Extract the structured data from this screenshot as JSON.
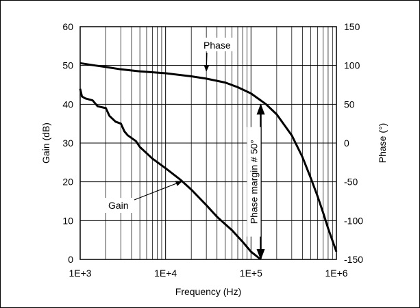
{
  "chart_data": {
    "type": "line",
    "title": "",
    "xlabel": "Frequency (Hz)",
    "ylabel_left": "Gain (dB)",
    "ylabel_right": "Phase (°)",
    "x_scale": "log",
    "xlim": [
      1000,
      1000000
    ],
    "ylim_left": [
      0,
      60
    ],
    "ylim_right": [
      -150,
      150
    ],
    "grid": true,
    "x_ticks": [
      {
        "value": 1000,
        "label": "1E+3"
      },
      {
        "value": 10000,
        "label": "1E+4"
      },
      {
        "value": 100000,
        "label": "1E+5"
      },
      {
        "value": 1000000,
        "label": "1E+6"
      }
    ],
    "y_left_ticks": [
      {
        "value": 0,
        "label": "0"
      },
      {
        "value": 10,
        "label": "10"
      },
      {
        "value": 20,
        "label": "20"
      },
      {
        "value": 30,
        "label": "30"
      },
      {
        "value": 40,
        "label": "40"
      },
      {
        "value": 50,
        "label": "50"
      },
      {
        "value": 60,
        "label": "60"
      }
    ],
    "y_right_ticks": [
      {
        "value": 150,
        "label": "150"
      },
      {
        "value": 100,
        "label": "100"
      },
      {
        "value": 50,
        "label": "50"
      },
      {
        "value": 0,
        "label": "0"
      },
      {
        "value": -50,
        "label": "-50"
      },
      {
        "value": -100,
        "label": "-100"
      },
      {
        "value": -150,
        "label": "-150"
      }
    ],
    "series": [
      {
        "name": "Gain",
        "axis": "left",
        "points": [
          [
            1000,
            44
          ],
          [
            1050,
            42
          ],
          [
            1150,
            41.5
          ],
          [
            1400,
            41
          ],
          [
            1600,
            39.5
          ],
          [
            2000,
            39
          ],
          [
            2200,
            37
          ],
          [
            2600,
            35.5
          ],
          [
            3000,
            35
          ],
          [
            3300,
            33
          ],
          [
            3600,
            32
          ],
          [
            4500,
            30.5
          ],
          [
            5000,
            29
          ],
          [
            7000,
            26
          ],
          [
            10000,
            23.5
          ],
          [
            15000,
            20.5
          ],
          [
            20000,
            18
          ],
          [
            30000,
            14
          ],
          [
            40000,
            11
          ],
          [
            60000,
            7.5
          ],
          [
            80000,
            4.5
          ],
          [
            100000,
            2
          ],
          [
            130000,
            0
          ]
        ]
      },
      {
        "name": "Phase",
        "axis": "right",
        "points": [
          [
            1000,
            103
          ],
          [
            1500,
            100
          ],
          [
            2000,
            98
          ],
          [
            3000,
            95
          ],
          [
            5000,
            92.5
          ],
          [
            10000,
            90
          ],
          [
            20000,
            86
          ],
          [
            30000,
            83
          ],
          [
            50000,
            78
          ],
          [
            70000,
            72
          ],
          [
            100000,
            64
          ],
          [
            150000,
            50
          ],
          [
            200000,
            37
          ],
          [
            300000,
            10
          ],
          [
            400000,
            -18
          ],
          [
            500000,
            -45
          ],
          [
            600000,
            -68
          ],
          [
            700000,
            -90
          ],
          [
            800000,
            -110
          ],
          [
            1000000,
            -140
          ]
        ]
      }
    ],
    "annotations": [
      {
        "text": "Phase",
        "target": [
          30000,
          90
        ]
      },
      {
        "text": "Gain",
        "target": [
          15000,
          20.5
        ]
      },
      {
        "text": "Phase margin # 50°",
        "x": 130000,
        "from_gain": 0,
        "to_phase": 50
      }
    ]
  }
}
